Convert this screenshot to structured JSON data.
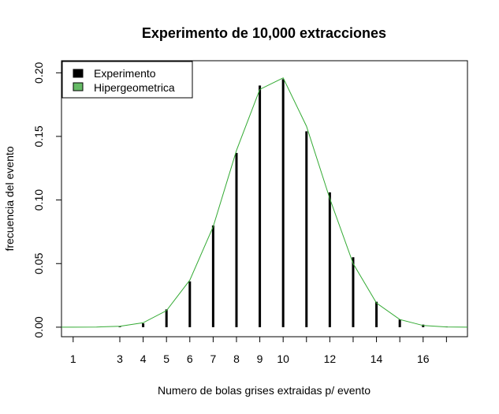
{
  "chart_data": {
    "type": "bar",
    "title": "Experimento de 10,000 extracciones",
    "xlabel": "Numero de bolas grises extraidas p/ evento",
    "ylabel": "frecuencia del evento",
    "xlim": [
      0.5,
      17.9
    ],
    "ylim": [
      -0.0075,
      0.2095
    ],
    "x_ticks": [
      1,
      3,
      4,
      5,
      6,
      7,
      8,
      9,
      10,
      12,
      14,
      16
    ],
    "x_tick_labels": [
      "1",
      "3",
      "4",
      "5",
      "6",
      "7",
      "8",
      "9",
      "10",
      "12",
      "14",
      "16"
    ],
    "x_minor_ticks": [
      11,
      13,
      15,
      17
    ],
    "y_ticks": [
      0.0,
      0.05,
      0.1,
      0.15,
      0.2
    ],
    "y_tick_labels": [
      "0.00",
      "0.05",
      "0.10",
      "0.15",
      "0.20"
    ],
    "grid": false,
    "legend_position": "top-left",
    "series": [
      {
        "name": "Experimento",
        "type": "bar",
        "color": "#000000",
        "x": [
          3,
          4,
          5,
          6,
          7,
          8,
          9,
          10,
          11,
          12,
          13,
          14,
          15,
          16,
          17
        ],
        "values": [
          0.0005,
          0.003,
          0.014,
          0.036,
          0.08,
          0.137,
          0.19,
          0.195,
          0.154,
          0.106,
          0.055,
          0.02,
          0.006,
          0.002,
          0.0005
        ]
      },
      {
        "name": "Hipergeometrica",
        "type": "line",
        "color": "#33aa33",
        "x": [
          0,
          1,
          2,
          3,
          4,
          5,
          6,
          7,
          8,
          9,
          10,
          11,
          12,
          13,
          14,
          15,
          16,
          17,
          18
        ],
        "values": [
          0,
          0,
          0.0001,
          0.0007,
          0.0035,
          0.013,
          0.037,
          0.079,
          0.139,
          0.187,
          0.196,
          0.158,
          0.101,
          0.05,
          0.019,
          0.006,
          0.0013,
          0.0002,
          0
        ]
      }
    ]
  }
}
